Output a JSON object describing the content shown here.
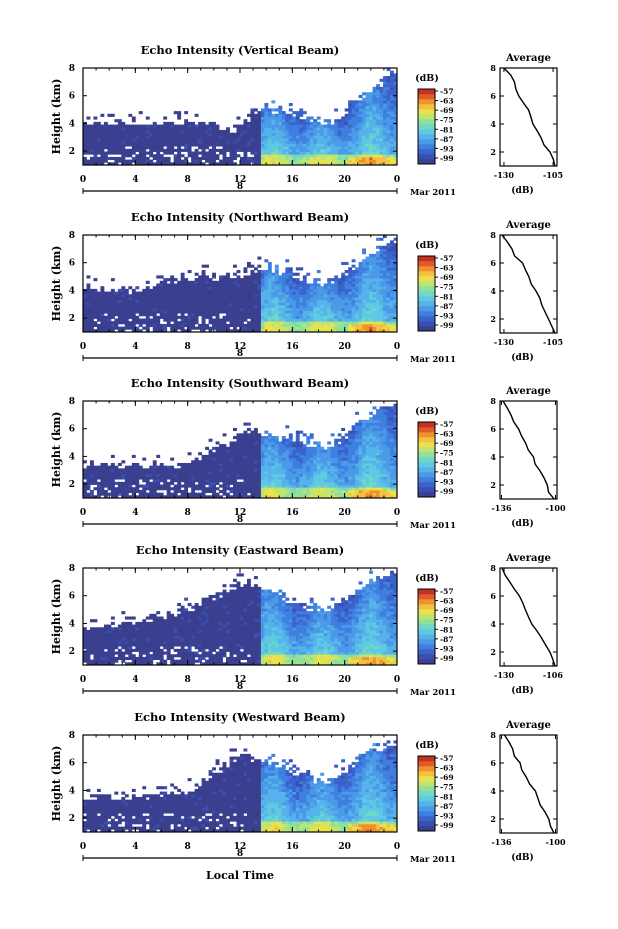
{
  "colors": {
    "colormap": [
      "#3b3f8f",
      "#3a4fb0",
      "#3b63cc",
      "#3f7fe0",
      "#4a9ae8",
      "#56b3ea",
      "#5fc9e3",
      "#6fd8c6",
      "#8fe09a",
      "#bfe570",
      "#e9e24d",
      "#f3c040",
      "#f0902f",
      "#e05a2a",
      "#c23222"
    ],
    "frame": "#000000",
    "background": "#ffffff"
  },
  "chart_data": [
    {
      "type": "heatmap",
      "title": "Echo Intensity (Vertical Beam)",
      "ylabel": "Height (km)",
      "yticks": [
        "2",
        "4",
        "6",
        "8"
      ],
      "ylim": [
        1,
        8
      ],
      "xticks": [
        "0",
        "4",
        "8",
        "12",
        "16",
        "20",
        "0"
      ],
      "xlim": [
        0,
        24
      ],
      "date_tick": "8",
      "date_label": "Mar 2011",
      "colorbar": {
        "unit": "(dB)",
        "labels": [
          "-57",
          "-63",
          "-69",
          "-75",
          "-81",
          "-87",
          "-93",
          "-99"
        ]
      },
      "echo_top_profile": [
        4.2,
        4.2,
        4.2,
        4.2,
        4.2,
        4.2,
        4.2,
        4.2,
        4.2,
        4.2,
        4.2,
        4.2,
        4.2,
        4.2,
        4.2,
        4.2,
        4.2,
        4.2,
        4.2,
        3.9,
        3.6,
        3.4,
        4.2,
        4.3,
        5.0,
        5.2,
        5.0,
        5.0,
        5.3,
        5.1,
        4.9,
        4.6,
        4.5,
        4.4,
        4.3,
        4.3,
        4.4,
        4.9,
        5.6,
        6.0,
        6.3,
        6.6,
        6.9,
        7.4,
        7.8
      ],
      "average": {
        "title": "Average",
        "xlabel": "(dB)",
        "xticks": [
          "-130",
          "-105"
        ],
        "xlim": [
          -132,
          -103
        ],
        "yticks": [
          "2",
          "4",
          "6",
          "8"
        ],
        "profile": [
          [
            1.0,
            -104
          ],
          [
            1.5,
            -105
          ],
          [
            2.0,
            -107
          ],
          [
            2.5,
            -110
          ],
          [
            3.0,
            -111
          ],
          [
            3.5,
            -113
          ],
          [
            4.0,
            -115
          ],
          [
            4.5,
            -116
          ],
          [
            5.0,
            -118
          ],
          [
            5.5,
            -120
          ],
          [
            6.0,
            -122
          ],
          [
            6.5,
            -124
          ],
          [
            7.0,
            -125
          ],
          [
            7.5,
            -127
          ],
          [
            8.0,
            -130
          ]
        ]
      }
    },
    {
      "type": "heatmap",
      "title": "Echo Intensity (Northward Beam)",
      "ylabel": "Height (km)",
      "yticks": [
        "2",
        "4",
        "6",
        "8"
      ],
      "ylim": [
        1,
        8
      ],
      "xticks": [
        "0",
        "4",
        "8",
        "12",
        "16",
        "20",
        "0"
      ],
      "xlim": [
        0,
        24
      ],
      "date_tick": "8",
      "date_label": "Mar 2011",
      "colorbar": {
        "unit": "(dB)",
        "labels": [
          "-57",
          "-63",
          "-69",
          "-75",
          "-81",
          "-87",
          "-93",
          "-99"
        ]
      },
      "echo_top_profile": [
        4.5,
        4.4,
        4.3,
        4.2,
        4.3,
        4.2,
        4.1,
        4.3,
        4.2,
        4.4,
        4.5,
        4.6,
        4.8,
        5.0,
        5.2,
        5.0,
        5.2,
        5.4,
        5.1,
        5.0,
        5.2,
        5.3,
        5.0,
        5.5,
        5.6,
        5.8,
        5.9,
        5.7,
        5.5,
        5.6,
        5.2,
        5.0,
        4.9,
        4.8,
        4.7,
        4.8,
        5.0,
        5.4,
        5.8,
        6.1,
        6.5,
        6.9,
        7.2,
        7.5,
        7.8
      ],
      "average": {
        "title": "Average",
        "xlabel": "(dB)",
        "xticks": [
          "-130",
          "-105"
        ],
        "xlim": [
          -132,
          -103
        ],
        "yticks": [
          "2",
          "4",
          "6",
          "8"
        ],
        "profile": [
          [
            1.0,
            -104
          ],
          [
            1.5,
            -106
          ],
          [
            2.0,
            -107
          ],
          [
            2.5,
            -109
          ],
          [
            3.0,
            -111
          ],
          [
            3.5,
            -112
          ],
          [
            4.0,
            -114
          ],
          [
            4.5,
            -116
          ],
          [
            5.0,
            -117
          ],
          [
            5.5,
            -119
          ],
          [
            6.0,
            -121
          ],
          [
            6.5,
            -124
          ],
          [
            7.0,
            -126
          ],
          [
            7.5,
            -128
          ],
          [
            8.0,
            -131
          ]
        ]
      }
    },
    {
      "type": "heatmap",
      "title": "Echo Intensity (Southward Beam)",
      "ylabel": "Height (km)",
      "yticks": [
        "2",
        "4",
        "6",
        "8"
      ],
      "ylim": [
        1,
        8
      ],
      "xticks": [
        "0",
        "4",
        "8",
        "12",
        "16",
        "20",
        "0"
      ],
      "xlim": [
        0,
        24
      ],
      "date_tick": "8",
      "date_label": "Mar 2011",
      "colorbar": {
        "unit": "(dB)",
        "labels": [
          "-57",
          "-63",
          "-69",
          "-75",
          "-81",
          "-87",
          "-93",
          "-99"
        ]
      },
      "echo_top_profile": [
        3.5,
        3.6,
        3.5,
        3.4,
        3.6,
        3.5,
        3.4,
        3.5,
        3.4,
        3.5,
        3.6,
        3.5,
        3.4,
        3.5,
        3.6,
        3.8,
        4.0,
        4.2,
        4.6,
        4.8,
        5.0,
        5.5,
        5.8,
        6.0,
        6.0,
        5.9,
        5.7,
        5.5,
        5.5,
        5.6,
        5.4,
        5.2,
        5.0,
        5.0,
        4.9,
        5.0,
        5.3,
        5.7,
        6.2,
        6.6,
        6.9,
        7.2,
        7.5,
        7.7,
        7.9
      ],
      "average": {
        "title": "Average",
        "xlabel": "(dB)",
        "xticks": [
          "-136",
          "-100"
        ],
        "xlim": [
          -137,
          -99
        ],
        "yticks": [
          "2",
          "4",
          "6",
          "8"
        ],
        "profile": [
          [
            1.0,
            -101
          ],
          [
            1.5,
            -104
          ],
          [
            2.0,
            -106
          ],
          [
            2.5,
            -108
          ],
          [
            3.0,
            -110
          ],
          [
            3.5,
            -113
          ],
          [
            4.0,
            -115
          ],
          [
            4.5,
            -118
          ],
          [
            5.0,
            -120
          ],
          [
            5.5,
            -123
          ],
          [
            6.0,
            -125
          ],
          [
            6.5,
            -128
          ],
          [
            7.0,
            -130
          ],
          [
            7.5,
            -132
          ],
          [
            8.0,
            -135
          ]
        ]
      }
    },
    {
      "type": "heatmap",
      "title": "Echo Intensity (Eastward Beam)",
      "ylabel": "Height (km)",
      "yticks": [
        "2",
        "4",
        "6",
        "8"
      ],
      "ylim": [
        1,
        8
      ],
      "xticks": [
        "0",
        "4",
        "8",
        "12",
        "16",
        "20",
        "0"
      ],
      "xlim": [
        0,
        24
      ],
      "date_tick": "8",
      "date_label": "Mar 2011",
      "colorbar": {
        "unit": "(dB)",
        "labels": [
          "-57",
          "-63",
          "-69",
          "-75",
          "-81",
          "-87",
          "-93",
          "-99"
        ]
      },
      "echo_top_profile": [
        3.8,
        3.9,
        4.0,
        4.0,
        4.1,
        4.2,
        4.2,
        4.3,
        4.4,
        4.5,
        4.6,
        4.7,
        4.9,
        5.0,
        5.2,
        5.3,
        5.5,
        5.8,
        6.0,
        6.3,
        6.5,
        6.8,
        7.0,
        7.0,
        6.9,
        6.8,
        6.5,
        6.2,
        6.0,
        5.9,
        5.7,
        5.5,
        5.3,
        5.2,
        5.1,
        5.2,
        5.5,
        5.9,
        6.3,
        6.7,
        7.0,
        7.3,
        7.5,
        7.7,
        7.9
      ],
      "average": {
        "title": "Average",
        "xlabel": "(dB)",
        "xticks": [
          "-130",
          "-106"
        ],
        "xlim": [
          -132,
          -104
        ],
        "yticks": [
          "2",
          "4",
          "6",
          "8"
        ],
        "profile": [
          [
            1.0,
            -105
          ],
          [
            1.5,
            -106
          ],
          [
            2.0,
            -108
          ],
          [
            2.5,
            -110
          ],
          [
            3.0,
            -112
          ],
          [
            3.5,
            -114
          ],
          [
            4.0,
            -116
          ],
          [
            4.5,
            -118
          ],
          [
            5.0,
            -119
          ],
          [
            5.5,
            -121
          ],
          [
            6.0,
            -123
          ],
          [
            6.5,
            -125
          ],
          [
            7.0,
            -127
          ],
          [
            7.5,
            -129
          ],
          [
            8.0,
            -131
          ]
        ]
      }
    },
    {
      "type": "heatmap",
      "title": "Echo Intensity (Westward Beam)",
      "ylabel": "Height (km)",
      "yticks": [
        "2",
        "4",
        "6",
        "8"
      ],
      "ylim": [
        1,
        8
      ],
      "xticks": [
        "0",
        "4",
        "8",
        "12",
        "16",
        "20",
        "0"
      ],
      "xlim": [
        0,
        24
      ],
      "date_tick": "8",
      "date_label": "Mar 2011",
      "colorbar": {
        "unit": "(dB)",
        "labels": [
          "-57",
          "-63",
          "-69",
          "-75",
          "-81",
          "-87",
          "-93",
          "-99"
        ]
      },
      "echo_top_profile": [
        3.6,
        3.7,
        3.8,
        3.8,
        3.7,
        3.6,
        3.7,
        3.8,
        3.8,
        3.7,
        3.8,
        3.9,
        4.0,
        4.1,
        4.0,
        4.2,
        4.5,
        4.8,
        5.2,
        5.6,
        6.0,
        6.4,
        6.6,
        6.6,
        6.5,
        6.3,
        6.1,
        6.0,
        5.8,
        5.7,
        5.5,
        5.2,
        5.0,
        4.9,
        4.8,
        4.9,
        5.2,
        5.6,
        6.0,
        6.4,
        6.7,
        7.0,
        7.2,
        7.4,
        7.6
      ],
      "average": {
        "title": "Average",
        "xlabel": "(dB)",
        "xticks": [
          "-136",
          "-100"
        ],
        "xlim": [
          -137,
          -99
        ],
        "yticks": [
          "2",
          "4",
          "6",
          "8"
        ],
        "profile": [
          [
            1.0,
            -101
          ],
          [
            1.5,
            -103
          ],
          [
            2.0,
            -105
          ],
          [
            2.5,
            -107
          ],
          [
            3.0,
            -110
          ],
          [
            3.5,
            -112
          ],
          [
            4.0,
            -114
          ],
          [
            4.5,
            -117
          ],
          [
            5.0,
            -119
          ],
          [
            5.5,
            -122
          ],
          [
            6.0,
            -124
          ],
          [
            6.5,
            -127
          ],
          [
            7.0,
            -129
          ],
          [
            7.5,
            -131
          ],
          [
            8.0,
            -134
          ]
        ]
      }
    }
  ],
  "xlabel": "Local Time"
}
